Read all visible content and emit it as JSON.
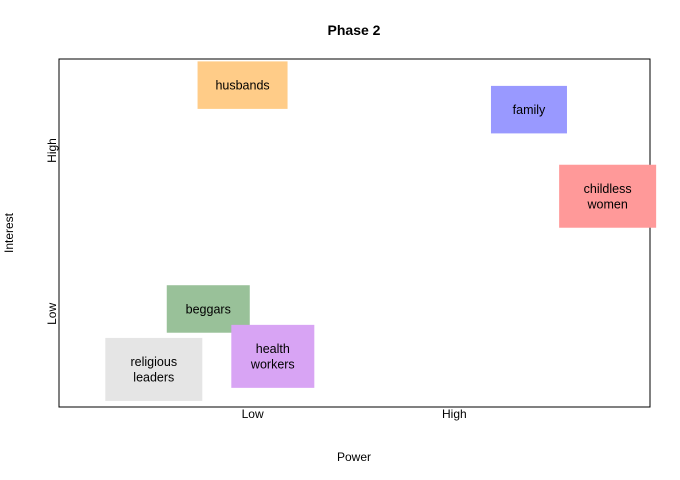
{
  "chart_data": {
    "type": "scatter",
    "title": "Phase 2",
    "xlabel": "Power",
    "ylabel": "Interest",
    "x_ticks": [
      {
        "label": "Low",
        "value": 1.0
      },
      {
        "label": "High",
        "value": 2.0
      }
    ],
    "y_ticks": [
      {
        "label": "Low",
        "value": 1.0
      },
      {
        "label": "High",
        "value": 2.0
      }
    ],
    "xlim": [
      0.04,
      2.97
    ],
    "ylim": [
      0.43,
      2.56
    ],
    "grid": false,
    "stakeholders": [
      {
        "name": "husbands",
        "lines": [
          "husbands"
        ],
        "x": 0.95,
        "y": 2.4,
        "color": "#FFCC88"
      },
      {
        "name": "family",
        "lines": [
          "family"
        ],
        "x": 2.37,
        "y": 2.25,
        "color": "#9999FF"
      },
      {
        "name": "childless women",
        "lines": [
          "childless",
          "women"
        ],
        "x": 2.76,
        "y": 1.72,
        "color": "#FF9999"
      },
      {
        "name": "beggars",
        "lines": [
          "beggars"
        ],
        "x": 0.78,
        "y": 1.03,
        "color": "#99C199"
      },
      {
        "name": "health workers",
        "lines": [
          "health",
          "workers"
        ],
        "x": 1.1,
        "y": 0.74,
        "color": "#D8A4F4"
      },
      {
        "name": "religious leaders",
        "lines": [
          "religious",
          "leaders"
        ],
        "x": 0.51,
        "y": 0.66,
        "color": "#E5E5E5"
      }
    ]
  }
}
